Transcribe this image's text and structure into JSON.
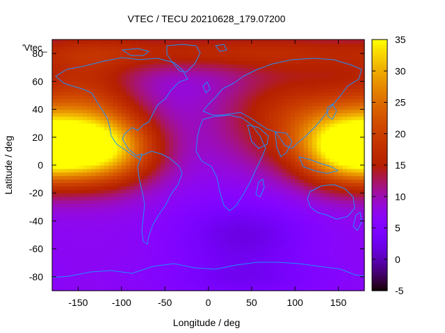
{
  "title": "VTEC / TECU 20210628_179.07200",
  "key_text": "'Vtec_",
  "xlabel": "Longitude / deg",
  "ylabel": "Latitude / deg",
  "chart_data": {
    "type": "heatmap",
    "title": "VTEC / TECU 20210628_179.07200",
    "xlabel": "Longitude / deg",
    "ylabel": "Latitude / deg",
    "xlim": [
      -180,
      180
    ],
    "ylim": [
      -90,
      90
    ],
    "x_ticks": [
      {
        "value": -150,
        "label": "-150"
      },
      {
        "value": -100,
        "label": "-100"
      },
      {
        "value": -50,
        "label": "-50"
      },
      {
        "value": 0,
        "label": "0"
      },
      {
        "value": 50,
        "label": "50"
      },
      {
        "value": 100,
        "label": "100"
      },
      {
        "value": 150,
        "label": "150"
      }
    ],
    "y_ticks": [
      {
        "value": -80,
        "label": "-80"
      },
      {
        "value": -60,
        "label": "-60"
      },
      {
        "value": -40,
        "label": "-40"
      },
      {
        "value": -20,
        "label": "-20"
      },
      {
        "value": 0,
        "label": "0"
      },
      {
        "value": 20,
        "label": "20"
      },
      {
        "value": 40,
        "label": "40"
      },
      {
        "value": 60,
        "label": "60"
      },
      {
        "value": 80,
        "label": "80"
      }
    ],
    "colorbar": {
      "range": [
        -5,
        35
      ],
      "ticks": [
        {
          "value": 35,
          "label": "35"
        },
        {
          "value": 30,
          "label": "30"
        },
        {
          "value": 25,
          "label": "25"
        },
        {
          "value": 20,
          "label": "20"
        },
        {
          "value": 15,
          "label": "15"
        },
        {
          "value": 10,
          "label": "10"
        },
        {
          "value": 5,
          "label": "5"
        },
        {
          "value": 0,
          "label": "0"
        },
        {
          "value": -5,
          "label": "-5"
        }
      ],
      "palette": "gnuplot black-purple-red-orange-yellow"
    },
    "field": {
      "base_value": 7,
      "features": [
        {
          "lon": -125,
          "lat": 12,
          "peak": 26,
          "sigma_lon": 45,
          "sigma_lat": 18
        },
        {
          "lon": 160,
          "lat": 12,
          "peak": 25,
          "sigma_lon": 40,
          "sigma_lat": 18
        },
        {
          "lon": 100,
          "lat": 35,
          "peak": 11,
          "sigma_lon": 60,
          "sigma_lat": 25
        },
        {
          "lon": -140,
          "lat": 50,
          "peak": 9,
          "sigma_lon": 45,
          "sigma_lat": 25
        },
        {
          "lon": 0,
          "lat": 82,
          "peak": 9,
          "sigma_lon": 200,
          "sigma_lat": 10
        },
        {
          "lon": 40,
          "lat": -50,
          "peak": -5,
          "sigma_lon": 55,
          "sigma_lat": 18
        },
        {
          "lon": 40,
          "lat": -82,
          "peak": -3,
          "sigma_lon": 70,
          "sigma_lat": 10
        }
      ]
    },
    "overlay": "coastlines"
  },
  "colors": {
    "coastline": "#1e90ff",
    "axes": "#000000",
    "background": "#ffffff"
  }
}
